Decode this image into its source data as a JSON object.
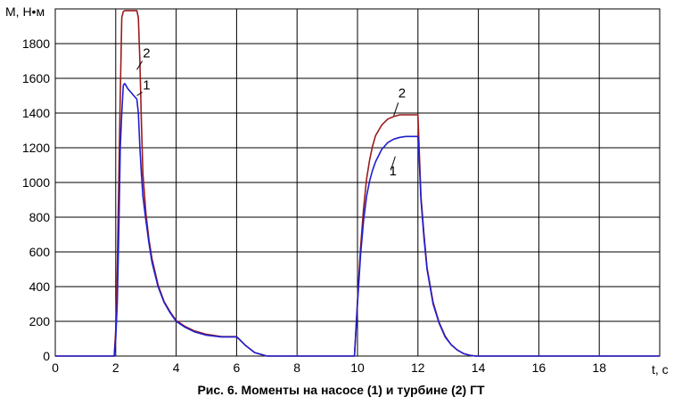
{
  "caption": "Рис. 6. Моменты на насосе (1) и турбине (2) ГТ",
  "chart_data": {
    "type": "line",
    "title": "",
    "xlabel": "t, c",
    "ylabel": "M, Н•м",
    "xlim": [
      0,
      20
    ],
    "ylim": [
      0,
      2000
    ],
    "x_ticks": [
      "0",
      "2",
      "4",
      "6",
      "8",
      "10",
      "12",
      "14",
      "16",
      "18"
    ],
    "y_ticks": [
      "0",
      "200",
      "400",
      "600",
      "800",
      "1000",
      "1200",
      "1400",
      "1600",
      "1800"
    ],
    "grid": true,
    "series": [
      {
        "name": "1",
        "color": "#1f1fd0",
        "x": [
          0,
          1.95,
          2.0,
          2.05,
          2.1,
          2.15,
          2.2,
          2.25,
          2.3,
          2.4,
          2.5,
          2.6,
          2.7,
          2.75,
          2.8,
          2.85,
          2.9,
          3.0,
          3.1,
          3.2,
          3.4,
          3.6,
          3.8,
          4.0,
          4.3,
          4.6,
          5.0,
          5.5,
          6.0,
          6.1,
          6.3,
          6.6,
          7.0,
          8.0,
          9.5,
          9.9,
          10.0,
          10.1,
          10.2,
          10.3,
          10.4,
          10.5,
          10.6,
          10.8,
          11.0,
          11.2,
          11.4,
          11.6,
          11.8,
          12.0,
          12.05,
          12.1,
          12.2,
          12.3,
          12.5,
          12.7,
          12.9,
          13.1,
          13.3,
          13.5,
          13.7,
          13.9,
          14.0,
          16.0,
          20.0
        ],
        "y": [
          0,
          0,
          100,
          300,
          700,
          1200,
          1400,
          1560,
          1570,
          1540,
          1520,
          1500,
          1480,
          1400,
          1200,
          1050,
          920,
          780,
          650,
          540,
          400,
          310,
          250,
          200,
          165,
          140,
          120,
          110,
          110,
          95,
          60,
          20,
          0,
          0,
          0,
          0,
          300,
          580,
          780,
          920,
          1010,
          1070,
          1120,
          1190,
          1230,
          1250,
          1260,
          1265,
          1265,
          1265,
          1100,
          900,
          680,
          500,
          300,
          190,
          110,
          65,
          35,
          15,
          5,
          0,
          0,
          0,
          0
        ]
      },
      {
        "name": "2",
        "color": "#9b1c1c",
        "x": [
          0,
          1.95,
          2.0,
          2.05,
          2.1,
          2.15,
          2.2,
          2.25,
          2.3,
          2.4,
          2.5,
          2.6,
          2.7,
          2.75,
          2.8,
          2.85,
          2.9,
          3.0,
          3.1,
          3.2,
          3.4,
          3.6,
          3.8,
          4.0,
          4.3,
          4.6,
          5.0,
          5.5,
          6.0,
          6.1,
          6.3,
          6.6,
          7.0,
          8.0,
          9.5,
          9.9,
          10.0,
          10.1,
          10.2,
          10.3,
          10.4,
          10.5,
          10.6,
          10.8,
          11.0,
          11.2,
          11.4,
          11.6,
          11.8,
          12.0,
          12.05,
          12.1,
          12.2,
          12.3,
          12.5,
          12.7,
          12.9,
          13.1,
          13.3,
          13.5,
          13.7,
          13.9,
          14.0,
          16.0,
          20.0
        ],
        "y": [
          0,
          0,
          150,
          500,
          1000,
          1500,
          1950,
          1985,
          1990,
          1990,
          1990,
          1990,
          1990,
          1950,
          1700,
          1350,
          1050,
          820,
          670,
          560,
          410,
          315,
          255,
          205,
          170,
          145,
          125,
          112,
          112,
          95,
          60,
          20,
          0,
          0,
          0,
          0,
          320,
          620,
          850,
          1020,
          1130,
          1210,
          1270,
          1330,
          1365,
          1380,
          1390,
          1390,
          1390,
          1390,
          1150,
          920,
          700,
          510,
          310,
          195,
          115,
          65,
          35,
          15,
          5,
          0,
          0,
          0,
          0
        ]
      }
    ],
    "annotations": [
      {
        "text": "1",
        "x": 2.9,
        "y": 1535
      },
      {
        "text": "2",
        "x": 2.9,
        "y": 1720
      },
      {
        "text": "2",
        "x": 11.35,
        "y": 1490
      },
      {
        "text": "1",
        "x": 11.05,
        "y": 1040
      }
    ]
  }
}
